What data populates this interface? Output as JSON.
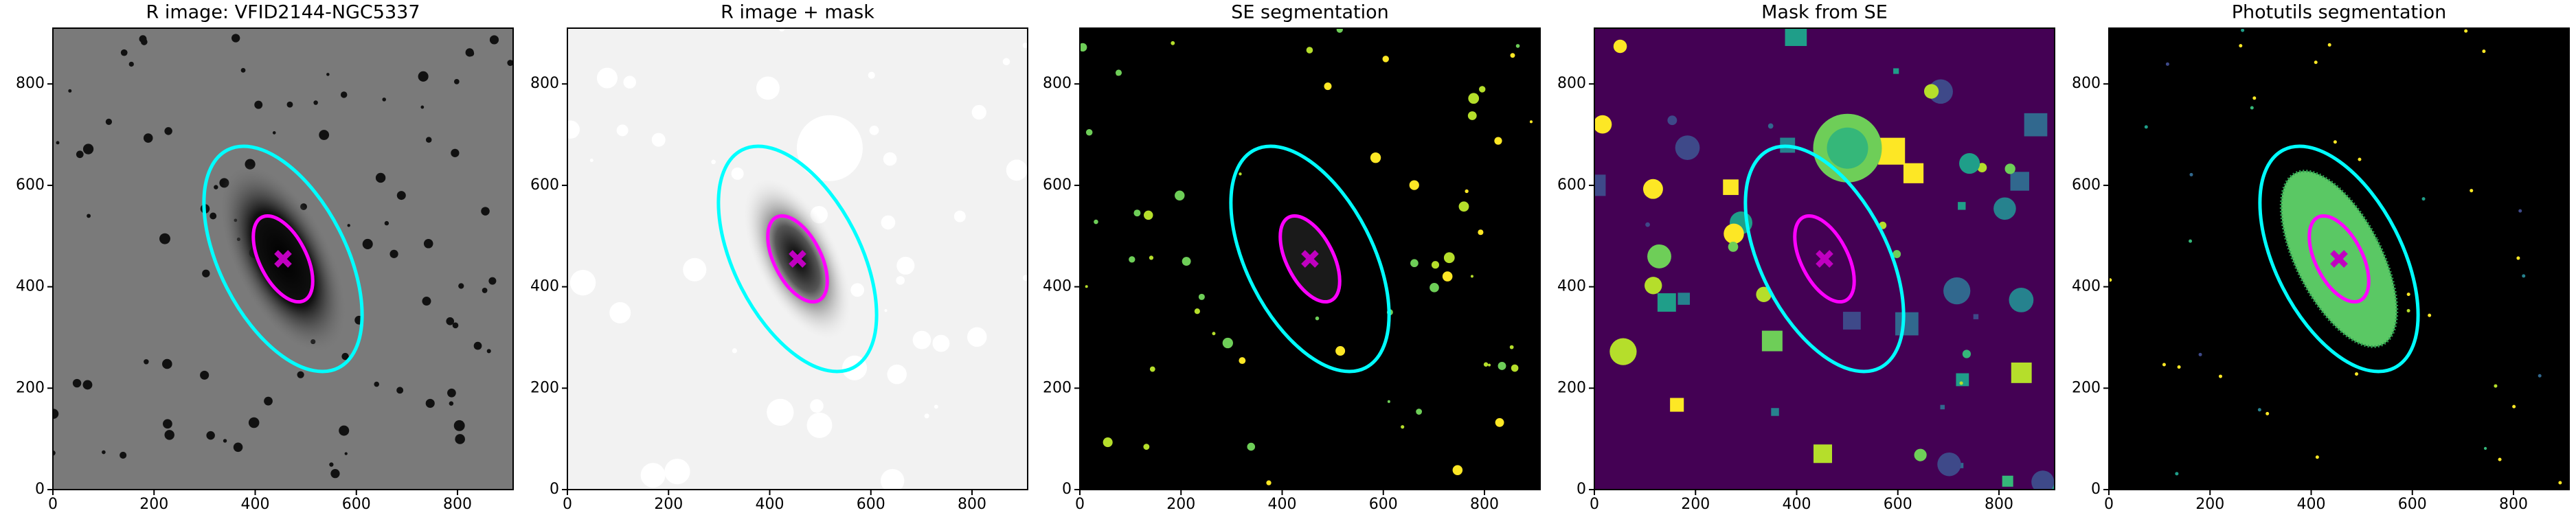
{
  "chart_data": [
    {
      "type": "image",
      "title": "R image: VFID2144-NGC5337",
      "xlim": [
        0,
        910
      ],
      "ylim": [
        0,
        910
      ],
      "xticks": [
        0,
        200,
        400,
        600,
        800
      ],
      "yticks": [
        0,
        200,
        400,
        600,
        800
      ]
    },
    {
      "type": "image",
      "title": "R image + mask",
      "xlim": [
        0,
        910
      ],
      "ylim": [
        0,
        910
      ],
      "xticks": [
        0,
        200,
        400,
        600,
        800
      ],
      "yticks": [
        0,
        200,
        400,
        600,
        800
      ]
    },
    {
      "type": "image",
      "title": "SE segmentation",
      "xlim": [
        0,
        910
      ],
      "ylim": [
        0,
        910
      ],
      "xticks": [
        0,
        200,
        400,
        600,
        800
      ],
      "yticks": [
        0,
        200,
        400,
        600,
        800
      ]
    },
    {
      "type": "image",
      "title": "Mask from SE",
      "xlim": [
        0,
        910
      ],
      "ylim": [
        0,
        910
      ],
      "xticks": [
        0,
        200,
        400,
        600,
        800
      ],
      "yticks": [
        0,
        200,
        400,
        600,
        800
      ]
    },
    {
      "type": "image",
      "title": "Photutils segmentation",
      "xlim": [
        0,
        910
      ],
      "ylim": [
        0,
        910
      ],
      "xticks": [
        0,
        200,
        400,
        600,
        800
      ],
      "yticks": [
        0,
        200,
        400,
        600,
        800
      ]
    }
  ]
}
